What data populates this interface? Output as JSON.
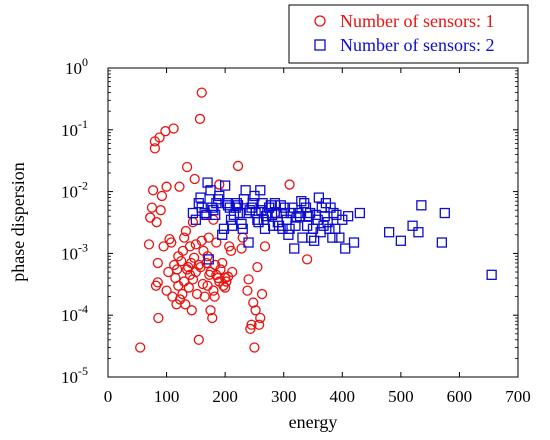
{
  "chart_data": {
    "type": "scatter",
    "xlabel": "energy",
    "ylabel": "phase dispersion",
    "xlim": [
      0,
      700
    ],
    "ylim": [
      1e-05,
      1
    ],
    "yscale": "log",
    "x_ticks": [
      "0",
      "100",
      "200",
      "300",
      "400",
      "500",
      "600",
      "700"
    ],
    "y_ticks": [
      {
        "base": "10",
        "exp": "0",
        "value": 1
      },
      {
        "base": "10",
        "exp": "-1",
        "value": 0.1
      },
      {
        "base": "10",
        "exp": "-2",
        "value": 0.01
      },
      {
        "base": "10",
        "exp": "-3",
        "value": 0.001
      },
      {
        "base": "10",
        "exp": "-4",
        "value": 0.0001
      },
      {
        "base": "10",
        "exp": "-5",
        "value": 1e-05
      }
    ],
    "legend_position": "top-right, above plot",
    "grid": false,
    "series": [
      {
        "name": "Number of sensors: 1",
        "marker": "circle",
        "color": "#e8130f",
        "points": [
          [
            55,
            3e-05
          ],
          [
            70,
            0.0014
          ],
          [
            72,
            0.0038
          ],
          [
            75,
            0.0055
          ],
          [
            77,
            0.0105
          ],
          [
            80,
            0.065
          ],
          [
            80,
            0.05
          ],
          [
            82,
            0.0003
          ],
          [
            83,
            0.0032
          ],
          [
            85,
            0.00034
          ],
          [
            85,
            0.0007
          ],
          [
            86,
            9e-05
          ],
          [
            88,
            0.075
          ],
          [
            90,
            0.005
          ],
          [
            92,
            0.0085
          ],
          [
            95,
            0.0013
          ],
          [
            98,
            0.095
          ],
          [
            100,
            0.012
          ],
          [
            100,
            0.00025
          ],
          [
            103,
            0.0005
          ],
          [
            105,
            0.0017
          ],
          [
            108,
            0.0015
          ],
          [
            110,
            0.0002
          ],
          [
            112,
            0.105
          ],
          [
            113,
            0.00065
          ],
          [
            115,
            0.0004
          ],
          [
            117,
            0.00015
          ],
          [
            118,
            0.00055
          ],
          [
            120,
            0.0003
          ],
          [
            120,
            0.0009
          ],
          [
            122,
            0.012
          ],
          [
            123,
            0.00018
          ],
          [
            125,
            0.00075
          ],
          [
            127,
            0.00022
          ],
          [
            128,
            0.0011
          ],
          [
            130,
            0.00035
          ],
          [
            130,
            0.0018
          ],
          [
            132,
            0.00015
          ],
          [
            133,
            0.0023
          ],
          [
            135,
            0.025
          ],
          [
            135,
            0.00055
          ],
          [
            137,
            0.0006
          ],
          [
            138,
            0.00028
          ],
          [
            140,
            0.0013
          ],
          [
            140,
            0.00045
          ],
          [
            142,
            0.0007
          ],
          [
            143,
            0.00012
          ],
          [
            145,
            0.00038
          ],
          [
            145,
            0.0032
          ],
          [
            147,
            0.00085
          ],
          [
            148,
            0.016
          ],
          [
            150,
            0.0005
          ],
          [
            150,
            0.0014
          ],
          [
            152,
            0.00022
          ],
          [
            155,
            4e-05
          ],
          [
            155,
            0.00065
          ],
          [
            157,
            0.15
          ],
          [
            158,
            0.0006
          ],
          [
            160,
            0.4
          ],
          [
            160,
            0.0016
          ],
          [
            162,
            0.00032
          ],
          [
            163,
            0.0011
          ],
          [
            165,
            0.0042
          ],
          [
            165,
            0.0002
          ],
          [
            168,
            0.0007
          ],
          [
            170,
            0.0009
          ],
          [
            170,
            0.0003
          ],
          [
            172,
            0.0018
          ],
          [
            173,
            0.00045
          ],
          [
            175,
            0.00012
          ],
          [
            175,
            0.0005
          ],
          [
            178,
            9e-05
          ],
          [
            180,
            0.0035
          ],
          [
            180,
            0.00025
          ],
          [
            182,
            0.0002
          ],
          [
            183,
            0.00065
          ],
          [
            185,
            0.0015
          ],
          [
            185,
            0.00045
          ],
          [
            188,
            0.0004
          ],
          [
            190,
            0.013
          ],
          [
            190,
            0.00035
          ],
          [
            192,
            0.00055
          ],
          [
            195,
            0.0007
          ],
          [
            197,
            0.0003
          ],
          [
            200,
            0.00028
          ],
          [
            200,
            0.0004
          ],
          [
            202,
            0.00035
          ],
          [
            205,
            0.00042
          ],
          [
            207,
            0.0013
          ],
          [
            210,
            0.0011
          ],
          [
            212,
            0.0005
          ],
          [
            222,
            0.026
          ],
          [
            228,
            0.0012
          ],
          [
            230,
            0.0018
          ],
          [
            238,
            0.00025
          ],
          [
            240,
            0.00038
          ],
          [
            243,
            6e-05
          ],
          [
            245,
            7e-05
          ],
          [
            248,
            0.00016
          ],
          [
            250,
            3e-05
          ],
          [
            252,
            0.00012
          ],
          [
            255,
            0.0006
          ],
          [
            258,
            7e-05
          ],
          [
            260,
            9e-05
          ],
          [
            263,
            0.00022
          ],
          [
            268,
            0.0013
          ],
          [
            285,
            0.0045
          ],
          [
            310,
            0.013
          ],
          [
            340,
            0.0008
          ]
        ]
      },
      {
        "name": "Number of sensors: 2",
        "marker": "square",
        "color": "#0d0dcf",
        "points": [
          [
            145,
            0.0045
          ],
          [
            150,
            0.0035
          ],
          [
            155,
            0.0065
          ],
          [
            158,
            0.008
          ],
          [
            160,
            0.0055
          ],
          [
            165,
            0.0045
          ],
          [
            168,
            0.0042
          ],
          [
            170,
            0.014
          ],
          [
            172,
            0.0008
          ],
          [
            175,
            0.0105
          ],
          [
            178,
            0.0055
          ],
          [
            180,
            0.005
          ],
          [
            183,
            0.0042
          ],
          [
            185,
            0.0065
          ],
          [
            188,
            0.0075
          ],
          [
            190,
            0.0085
          ],
          [
            195,
            0.002
          ],
          [
            198,
            0.0025
          ],
          [
            200,
            0.0125
          ],
          [
            203,
            0.0065
          ],
          [
            205,
            0.006
          ],
          [
            208,
            0.0055
          ],
          [
            210,
            0.0035
          ],
          [
            212,
            0.0028
          ],
          [
            215,
            0.0042
          ],
          [
            218,
            0.0055
          ],
          [
            220,
            0.0065
          ],
          [
            222,
            0.006
          ],
          [
            225,
            0.0045
          ],
          [
            228,
            0.003
          ],
          [
            230,
            0.0025
          ],
          [
            232,
            0.0075
          ],
          [
            235,
            0.0105
          ],
          [
            237,
            0.0045
          ],
          [
            240,
            0.0015
          ],
          [
            242,
            0.005
          ],
          [
            245,
            0.0055
          ],
          [
            247,
            0.0065
          ],
          [
            250,
            0.0085
          ],
          [
            252,
            0.0045
          ],
          [
            255,
            0.0035
          ],
          [
            257,
            0.0032
          ],
          [
            260,
            0.0105
          ],
          [
            262,
            0.005
          ],
          [
            264,
            0.0065
          ],
          [
            266,
            0.0035
          ],
          [
            268,
            0.0025
          ],
          [
            270,
            0.004
          ],
          [
            272,
            0.0045
          ],
          [
            275,
            0.0055
          ],
          [
            278,
            0.006
          ],
          [
            280,
            0.0042
          ],
          [
            282,
            0.0028
          ],
          [
            285,
            0.0065
          ],
          [
            288,
            0.0045
          ],
          [
            290,
            0.0032
          ],
          [
            292,
            0.0028
          ],
          [
            295,
            0.006
          ],
          [
            298,
            0.0025
          ],
          [
            300,
            0.0045
          ],
          [
            302,
            0.0055
          ],
          [
            305,
            0.0035
          ],
          [
            308,
            0.002
          ],
          [
            310,
            0.0025
          ],
          [
            312,
            0.0045
          ],
          [
            315,
            0.0055
          ],
          [
            318,
            0.0012
          ],
          [
            320,
            0.0028
          ],
          [
            322,
            0.0038
          ],
          [
            325,
            0.0045
          ],
          [
            328,
            0.004
          ],
          [
            330,
            0.007
          ],
          [
            332,
            0.0018
          ],
          [
            335,
            0.0065
          ],
          [
            338,
            0.0055
          ],
          [
            340,
            0.0028
          ],
          [
            342,
            0.004
          ],
          [
            345,
            0.0045
          ],
          [
            347,
            0.0018
          ],
          [
            350,
            0.0025
          ],
          [
            352,
            0.0016
          ],
          [
            355,
            0.0042
          ],
          [
            358,
            0.0035
          ],
          [
            360,
            0.008
          ],
          [
            363,
            0.0022
          ],
          [
            365,
            0.0055
          ],
          [
            368,
            0.0028
          ],
          [
            370,
            0.004
          ],
          [
            372,
            0.0065
          ],
          [
            375,
            0.0032
          ],
          [
            378,
            0.0025
          ],
          [
            380,
            0.0055
          ],
          [
            383,
            0.0018
          ],
          [
            385,
            0.0045
          ],
          [
            388,
            0.0025
          ],
          [
            390,
            0.0042
          ],
          [
            395,
            0.0018
          ],
          [
            400,
            0.0035
          ],
          [
            405,
            0.0012
          ],
          [
            410,
            0.004
          ],
          [
            420,
            0.0015
          ],
          [
            430,
            0.0045
          ],
          [
            480,
            0.0022
          ],
          [
            500,
            0.0016
          ],
          [
            520,
            0.0028
          ],
          [
            530,
            0.0022
          ],
          [
            535,
            0.006
          ],
          [
            570,
            0.0015
          ],
          [
            575,
            0.0045
          ],
          [
            655,
            0.00045
          ]
        ]
      }
    ]
  }
}
